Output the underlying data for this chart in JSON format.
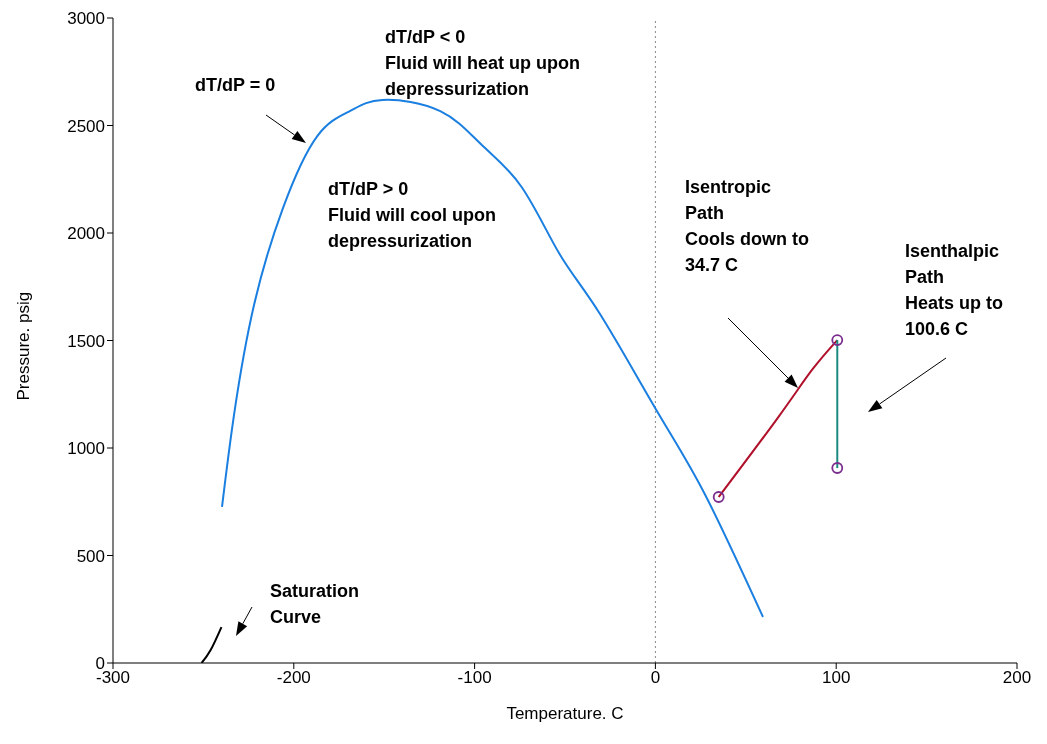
{
  "chart_data": {
    "type": "line",
    "xlabel": "Temperature. C",
    "ylabel": "Pressure. psig",
    "xlim": [
      -300,
      200
    ],
    "xticks": [
      -300,
      -200,
      -100,
      0,
      100,
      200
    ],
    "ylim": [
      0,
      3000
    ],
    "yticks": [
      0,
      500,
      1000,
      1500,
      2000,
      2500,
      3000
    ],
    "grid": false,
    "marker": "none",
    "line_style": "solid",
    "series": [
      {
        "color": "#1a7fe0",
        "x": [
          -239.7,
          -233,
          -222,
          -206,
          -187,
          -169,
          -151,
          -119,
          -96,
          -74,
          -53,
          -31,
          0.5,
          27,
          59.5
        ],
        "values": [
          726,
          1158,
          1665,
          2116,
          2451,
          2567,
          2619,
          2567,
          2409,
          2214,
          1902,
          1628,
          1177,
          791,
          214
        ]
      },
      {
        "color": "#000000",
        "x": [
          -251,
          -246,
          -240
        ],
        "values": [
          0,
          60,
          167
        ]
      },
      {
        "color": "#b0102a",
        "x": [
          35,
          68,
          86.6,
          100.6
        ],
        "values": [
          772,
          1144,
          1363,
          1502
        ]
      },
      {
        "color": "#1a8a80",
        "x": [
          100.6,
          100.6
        ],
        "values": [
          1502,
          907
        ]
      },
      {
        "type": "scatter",
        "color": "#7b2d8e",
        "marker": "circle",
        "x": [
          35,
          100.6,
          100.6
        ],
        "values": [
          772,
          1502,
          907
        ]
      }
    ],
    "ref_lines": [
      {
        "axis": "x",
        "value": 0,
        "color": "#888888",
        "line_style": "dotted"
      }
    ],
    "annotations": [
      "dT/dP = 0",
      "dT/dP < 0\nFluid will heat up upon\ndepressurization",
      "dT/dP > 0\nFluid will cool upon\ndepressurization",
      "Isentropic\nPath\nCools down to\n34.7 C",
      "Isenthalpic\nPath\nHeats up to\n100.6 C",
      "Saturation\nCurve"
    ]
  }
}
